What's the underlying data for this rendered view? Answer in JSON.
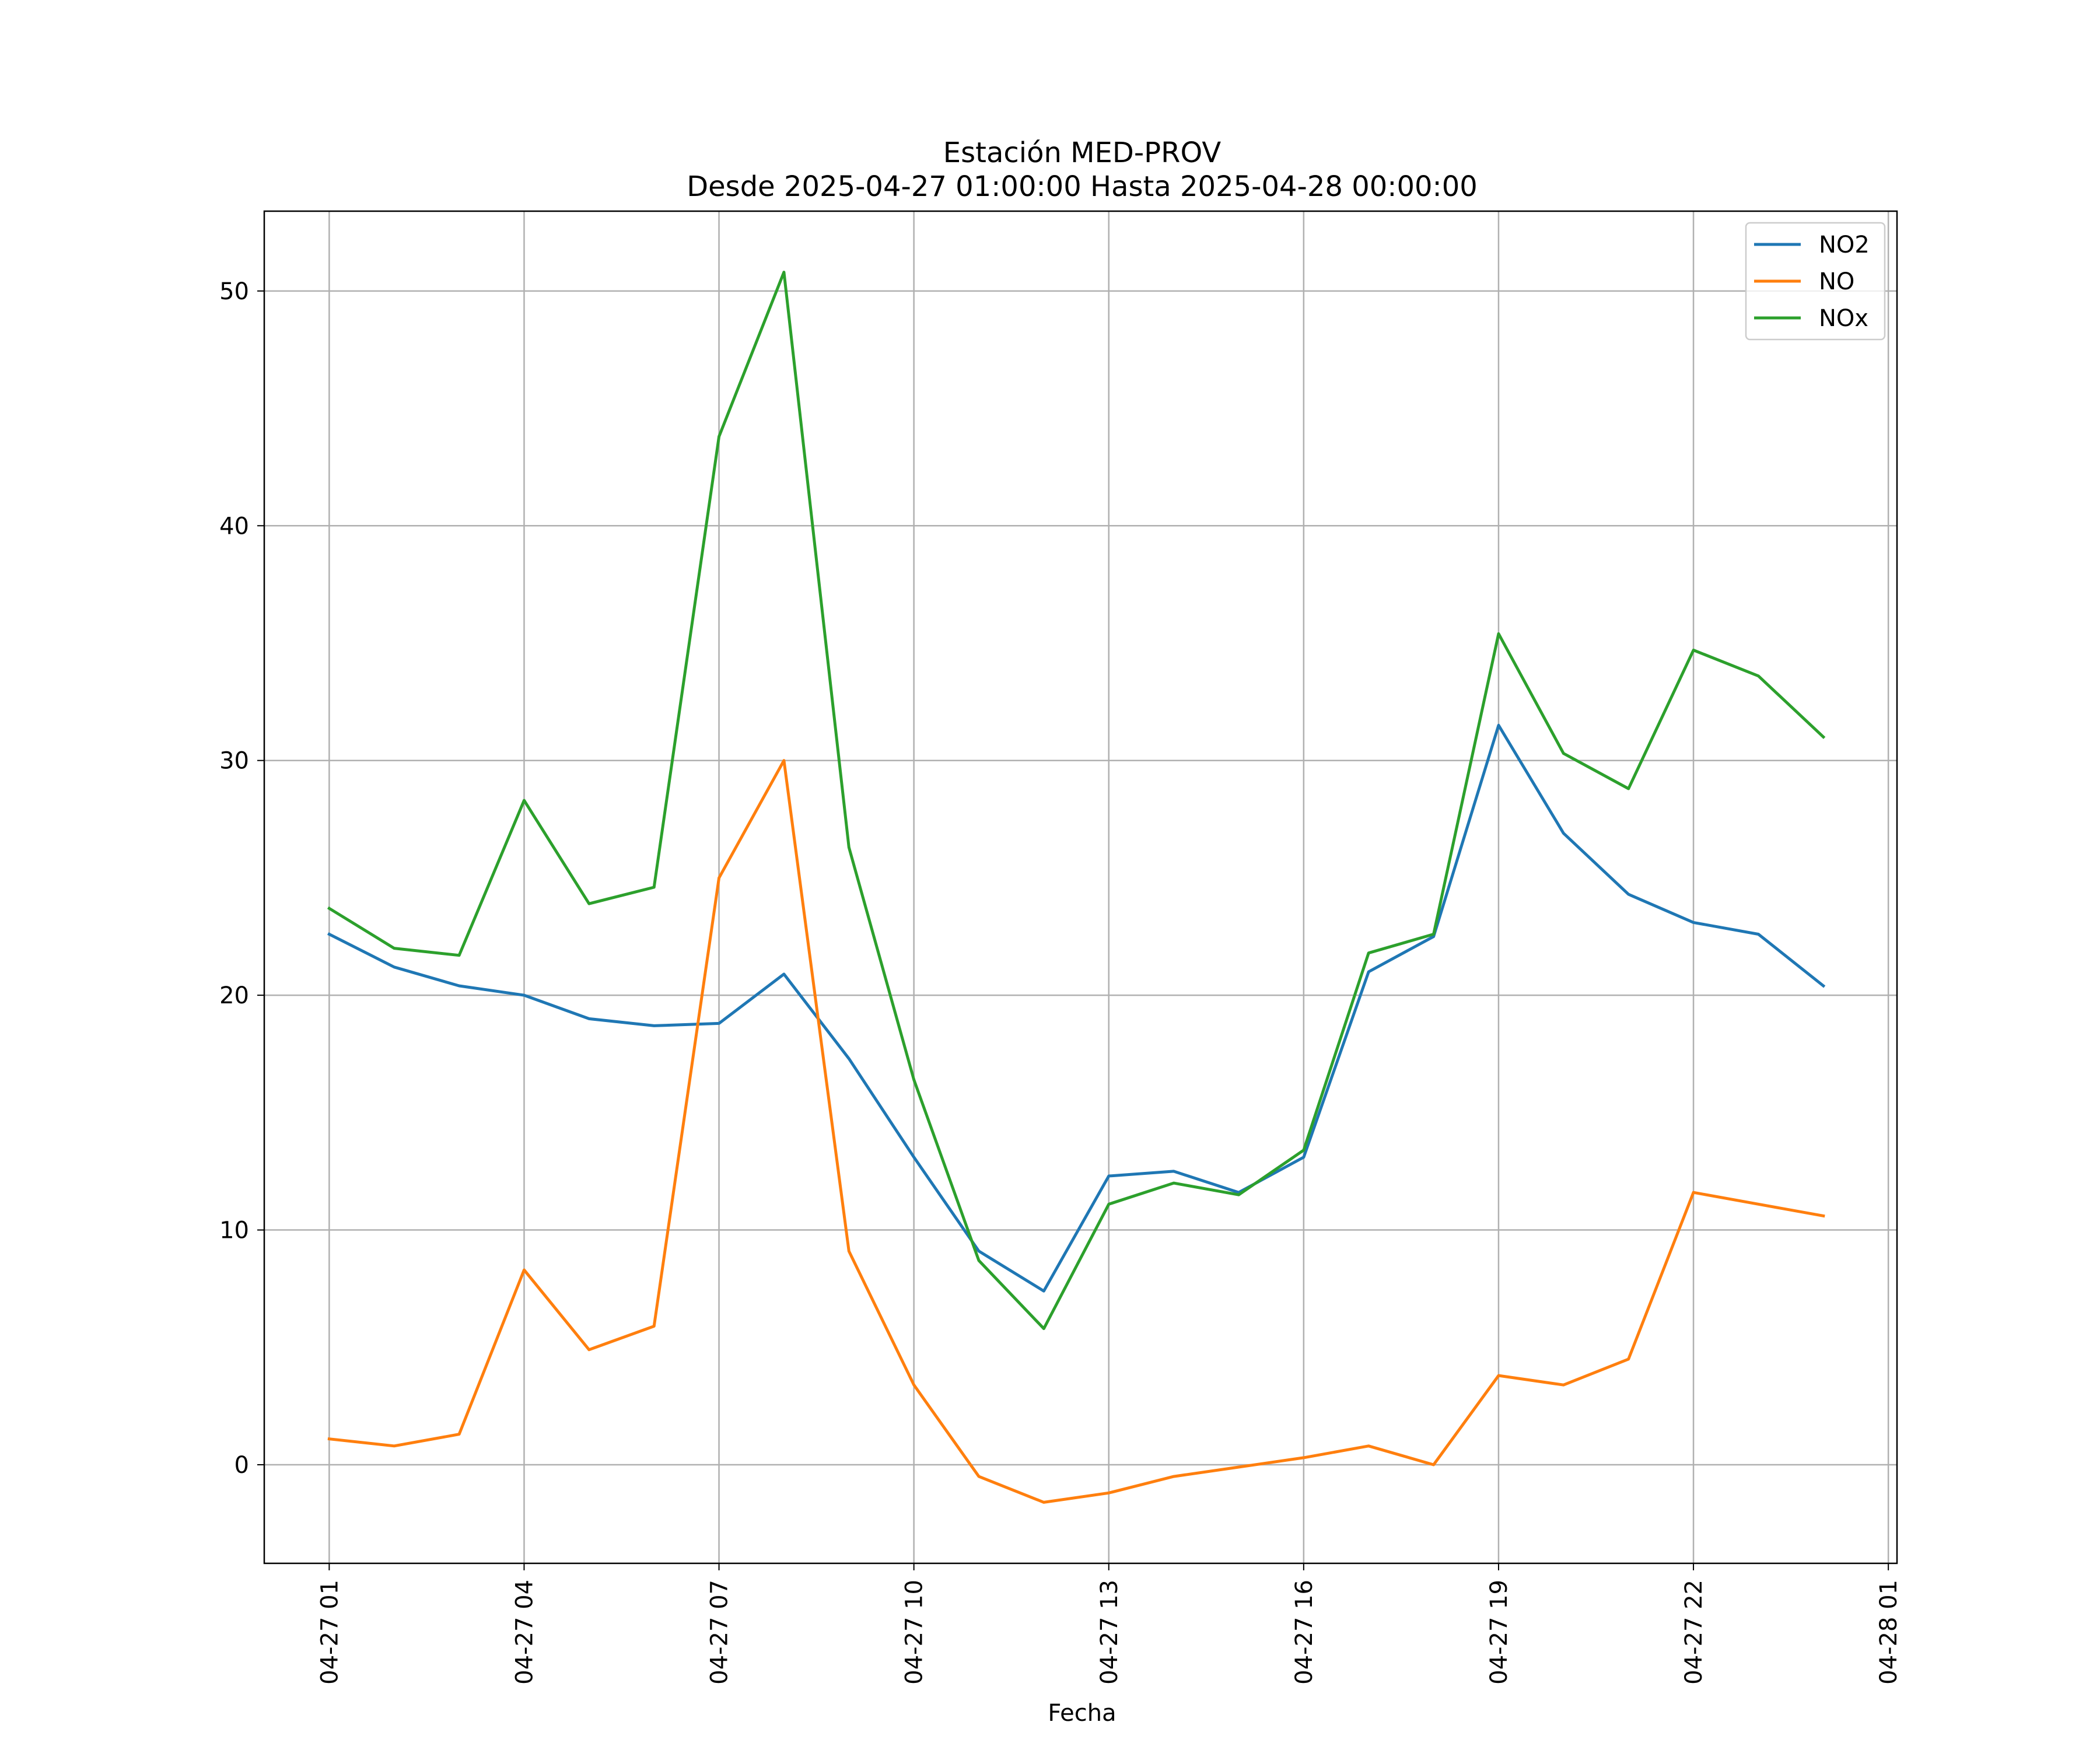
{
  "chart_data": {
    "type": "line",
    "title": "Estación MED-PROV",
    "subtitle": "Desde 2025-04-27 01:00:00 Hasta 2025-04-28 00:00:00",
    "xlabel": "Fecha",
    "ylabel": "",
    "x": [
      "2025-04-27 01:00",
      "2025-04-27 02:00",
      "2025-04-27 03:00",
      "2025-04-27 04:00",
      "2025-04-27 05:00",
      "2025-04-27 06:00",
      "2025-04-27 07:00",
      "2025-04-27 08:00",
      "2025-04-27 09:00",
      "2025-04-27 10:00",
      "2025-04-27 11:00",
      "2025-04-27 12:00",
      "2025-04-27 13:00",
      "2025-04-27 14:00",
      "2025-04-27 15:00",
      "2025-04-27 16:00",
      "2025-04-27 17:00",
      "2025-04-27 18:00",
      "2025-04-27 19:00",
      "2025-04-27 20:00",
      "2025-04-27 21:00",
      "2025-04-27 22:00",
      "2025-04-27 23:00",
      "2025-04-28 00:00"
    ],
    "x_ticks": [
      "04-27 01",
      "04-27 04",
      "04-27 07",
      "04-27 10",
      "04-27 13",
      "04-27 16",
      "04-27 19",
      "04-27 22",
      "04-28 01"
    ],
    "xlim": [
      "2025-04-27 00:00",
      "2025-04-28 01:08"
    ],
    "y_ticks": [
      0,
      10,
      20,
      30,
      40,
      50
    ],
    "ylim": [
      -4.2,
      53.4
    ],
    "grid": true,
    "legend_position": "top-right",
    "series": [
      {
        "name": "NO2",
        "color": "#1f77b4",
        "values": [
          22.6,
          21.2,
          20.4,
          20.0,
          19.0,
          18.7,
          18.8,
          20.9,
          17.3,
          13.1,
          9.1,
          7.4,
          12.3,
          12.5,
          11.6,
          13.1,
          21.0,
          22.5,
          31.5,
          26.9,
          24.3,
          23.1,
          22.6,
          20.4
        ]
      },
      {
        "name": "NO",
        "color": "#ff7f0e",
        "values": [
          1.1,
          0.8,
          1.3,
          8.3,
          4.9,
          5.9,
          25.0,
          30.0,
          9.1,
          3.4,
          -0.5,
          -1.6,
          -1.2,
          -0.5,
          -0.1,
          0.3,
          0.8,
          0.0,
          3.8,
          3.4,
          4.5,
          11.6,
          11.1,
          10.6
        ]
      },
      {
        "name": "NOx",
        "color": "#2ca02c",
        "values": [
          23.7,
          22.0,
          21.7,
          28.3,
          23.9,
          24.6,
          43.8,
          50.8,
          26.3,
          16.4,
          8.7,
          5.8,
          11.1,
          12.0,
          11.5,
          13.4,
          21.8,
          22.6,
          35.4,
          30.3,
          28.8,
          34.7,
          33.6,
          31.0
        ]
      }
    ]
  }
}
